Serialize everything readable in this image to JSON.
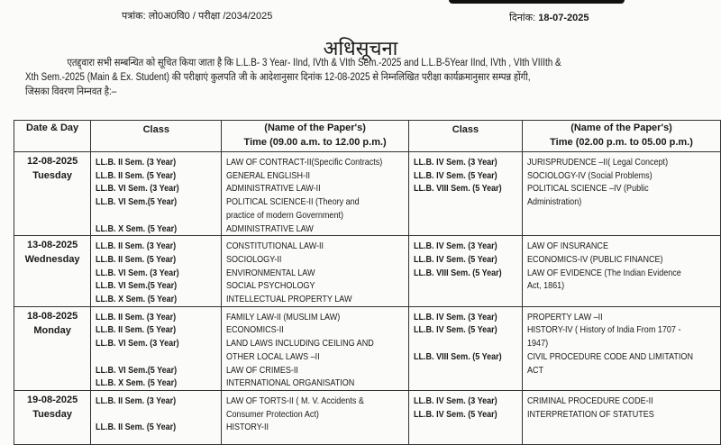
{
  "header": {
    "ref_label": "पत्रांक:",
    "ref_number": "लो0अ0वि0 / परीक्षा /2034/2025",
    "date_label": "दिनांक:",
    "date_value": "18-07-2025"
  },
  "title": "अधिसूचना",
  "intro": {
    "line1": "एतद्द्वारा सभी सम्बन्धित को सूचित किया जाता है कि L.L.B- 3 Year- IInd, IVth & VIth Sem.-2025 and L.L.B-5Year IInd, IVth , VIth VIIIth &",
    "line2": "Xth Sem.-2025 (Main & Ex. Student) की परीक्षाएं कुलपति जी के आदेशानुसार दिनांक 12-08-2025 से  निम्नलिखित परीक्षा कार्यक्रमानुसार सम्पन्न होंगी,",
    "line3": "जिसका विवरण निम्नवत है:–"
  },
  "table": {
    "headers": {
      "date": "Date & Day",
      "class": "Class",
      "paper_title": "(Name of the Paper's)",
      "morning_time": "Time (09.00 a.m. to 12.00 p.m.)",
      "class2": "Class",
      "paper_title2": "(Name of the Paper's)",
      "afternoon_time": "Time (02.00 p.m. to 05.00 p.m.)"
    },
    "rows": [
      {
        "date": "12-08-2025",
        "day": "Tuesday",
        "morning_classes": [
          "LL.B. II Sem. (3 Year)",
          "LL.B. II Sem. (5 Year)",
          "LL.B. VI Sem. (3 Year)",
          "LL.B. VI Sem.(5 Year)",
          "",
          "LL.B. X Sem. (5 Year)"
        ],
        "morning_papers": [
          "LAW OF CONTRACT-II(Specific Contracts)",
          "GENERAL ENGLISH-II",
          "ADMINISTRATIVE LAW-II",
          "POLITICAL SCIENCE-II (Theory and",
          "practice of modern Government)",
          "ADMINISTRATIVE LAW"
        ],
        "afternoon_classes": [
          "LL.B. IV Sem. (3 Year)",
          "LL.B. IV Sem. (5 Year)",
          "LL.B. VIII Sem. (5 Year)"
        ],
        "afternoon_papers": [
          "JURISPRUDENCE –II( Legal Concept)",
          "SOCIOLOGY-IV (Social Problems)",
          "POLITICAL SCIENCE –IV (Public",
          "Administration)"
        ]
      },
      {
        "date": "13-08-2025",
        "day": "Wednesday",
        "morning_classes": [
          "LL.B. II Sem. (3 Year)",
          "LL.B. II Sem. (5 Year)",
          "LL.B. VI Sem. (3 Year)",
          "LL.B. VI Sem.(5 Year)",
          "LL.B. X Sem. (5 Year)"
        ],
        "morning_papers": [
          "CONSTITUTIONAL LAW-II",
          "SOCIOLOGY-II",
          "ENVIRONMENTAL LAW",
          "SOCIAL PSYCHOLOGY",
          "INTELLECTUAL PROPERTY LAW"
        ],
        "afternoon_classes": [
          "LL.B. IV Sem. (3 Year)",
          "LL.B. IV Sem. (5 Year)",
          "LL.B. VIII Sem. (5 Year)"
        ],
        "afternoon_papers": [
          "LAW OF INSURANCE",
          "ECONOMICS-IV (PUBLIC FINANCE)",
          "LAW OF EVIDENCE (The Indian Evidence",
          "Act, 1861)"
        ]
      },
      {
        "date": "18-08-2025",
        "day": "Monday",
        "morning_classes": [
          "LL.B. II Sem. (3 Year)",
          "LL.B. II Sem. (5 Year)",
          "LL.B. VI Sem. (3 Year)",
          "",
          "LL.B. VI Sem.(5 Year)",
          "LL.B. X Sem. (5 Year)"
        ],
        "morning_papers": [
          "FAMILY LAW-II  (MUSLIM LAW)",
          "ECONOMICS-II",
          "LAND LAWS INCLUDING CEILING AND",
          "OTHER LOCAL LAWS –II",
          "LAW OF CRIMES-II",
          "INTERNATIONAL ORGANISATION"
        ],
        "afternoon_classes": [
          "LL.B. IV Sem. (3 Year)",
          "LL.B. IV Sem. (5 Year)",
          "",
          "LL.B. VIII Sem. (5 Year)"
        ],
        "afternoon_papers": [
          "PROPERTY LAW –II",
          "HISTORY-IV ( History of India From 1707 -",
          "1947)",
          "CIVIL PROCEDURE CODE AND LIMITATION",
          "ACT"
        ]
      },
      {
        "date": "19-08-2025",
        "day": "Tuesday",
        "morning_classes": [
          "LL.B. II Sem. (3 Year)",
          "",
          "LL.B. II Sem. (5 Year)"
        ],
        "morning_papers": [
          "LAW OF TORTS-II ( M. V. Accidents &",
          "Consumer Protection Act)",
          "HISTORY-II"
        ],
        "afternoon_classes": [
          "LL.B. IV Sem. (3 Year)",
          "LL.B. IV Sem. (5 Year)"
        ],
        "afternoon_papers": [
          "CRIMINAL PROCEDURE CODE-II",
          "INTERPRETATION OF STATUTES"
        ]
      }
    ]
  }
}
